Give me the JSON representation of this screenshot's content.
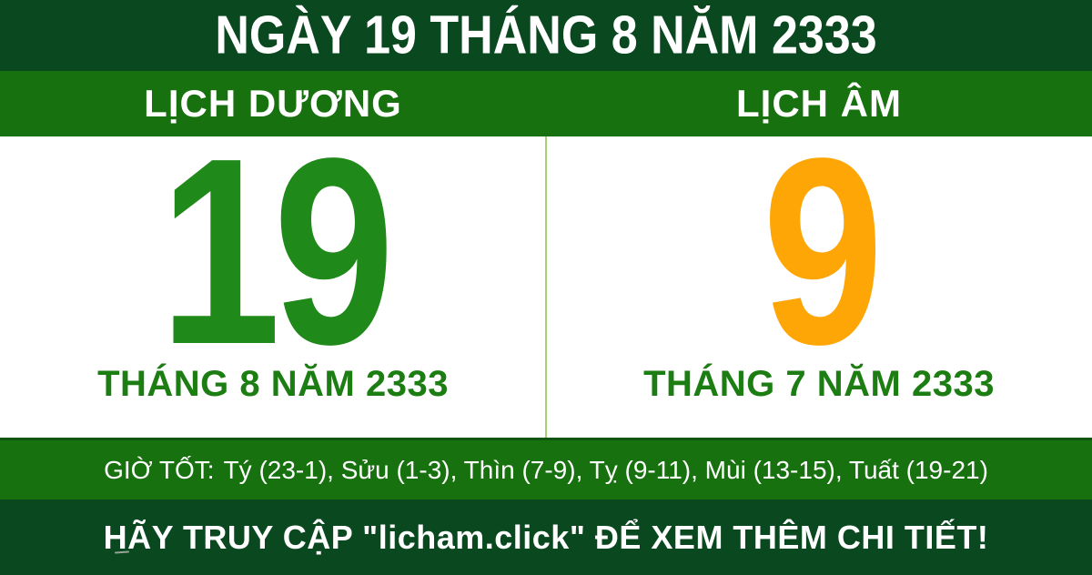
{
  "top_bar": {
    "title": "NGÀY 19 THÁNG 8 NĂM 2333"
  },
  "calendars": {
    "solar": {
      "header": "LỊCH DƯƠNG",
      "day": "19",
      "month_year": "THÁNG 8 NĂM 2333"
    },
    "lunar": {
      "header": "LỊCH ÂM",
      "day": "9",
      "month_year": "THÁNG 7 NĂM 2333"
    }
  },
  "good_hours": {
    "label": "GIỜ TỐT:",
    "hours": [
      "Tý (23-1)",
      "Sửu (1-3)",
      "Thìn (7-9)",
      "Tỵ (9-11)",
      "Mùi (13-15)",
      "Tuất (19-21)"
    ]
  },
  "footer": {
    "cta": "HÃY TRUY CẬP \"licham.click\" ĐỂ XEM THÊM CHI TIẾT!"
  },
  "colors": {
    "dark_green": "#0a481f",
    "mid_green": "#17710e",
    "day_green": "#1f8a1a",
    "month_green": "#1c7d12",
    "lunar_orange": "#ffa607",
    "divider_green": "#a2d36f",
    "white": "#ffffff"
  }
}
